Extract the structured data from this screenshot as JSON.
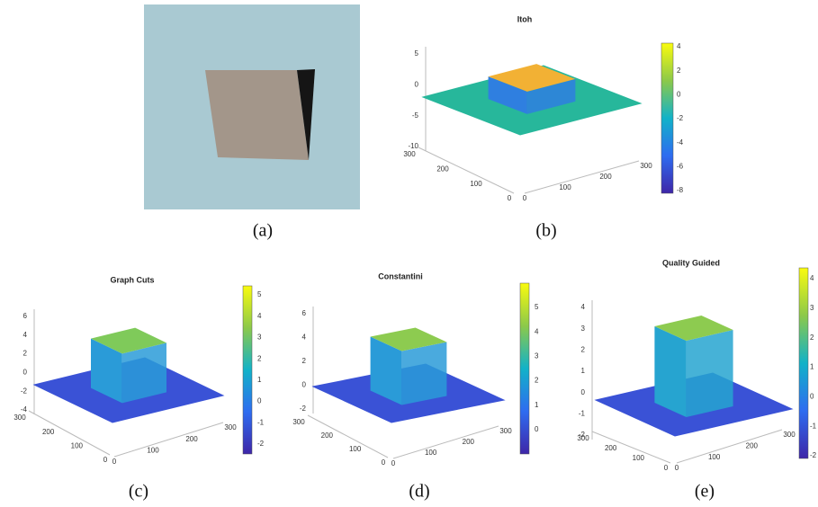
{
  "panels": [
    {
      "caption": "(a)"
    },
    {
      "title": "Itoh",
      "caption": "(b)",
      "z_ticks": [
        "5",
        "0",
        "-5",
        "-10"
      ],
      "left_ticks": [
        "300",
        "200",
        "100",
        "0"
      ],
      "right_ticks": [
        "0",
        "100",
        "200",
        "300"
      ],
      "colorbar_ticks": [
        "4",
        "2",
        "0",
        "-2",
        "-4",
        "-6",
        "-8"
      ]
    },
    {
      "title": "Graph Cuts",
      "caption": "(c)",
      "z_ticks": [
        "6",
        "4",
        "2",
        "0",
        "-2",
        "-4"
      ],
      "left_ticks": [
        "300",
        "200",
        "100",
        "0"
      ],
      "right_ticks": [
        "0",
        "100",
        "200",
        "300"
      ],
      "colorbar_ticks": [
        "5",
        "4",
        "3",
        "2",
        "1",
        "0",
        "-1",
        "-2"
      ]
    },
    {
      "title": "Constantini",
      "caption": "(d)",
      "z_ticks": [
        "6",
        "4",
        "2",
        "0",
        "-2"
      ],
      "left_ticks": [
        "300",
        "200",
        "100",
        "0"
      ],
      "right_ticks": [
        "0",
        "100",
        "200",
        "300"
      ],
      "colorbar_ticks": [
        "5",
        "4",
        "3",
        "2",
        "1",
        "0"
      ]
    },
    {
      "title": "Quality Guided",
      "caption": "(e)",
      "z_ticks": [
        "4",
        "3",
        "2",
        "1",
        "0",
        "-1",
        "-2"
      ],
      "left_ticks": [
        "300",
        "200",
        "100",
        "0"
      ],
      "right_ticks": [
        "0",
        "100",
        "200",
        "300"
      ],
      "colorbar_ticks": [
        "4",
        "3",
        "2",
        "1",
        "0",
        "-1",
        "-2"
      ]
    }
  ]
}
